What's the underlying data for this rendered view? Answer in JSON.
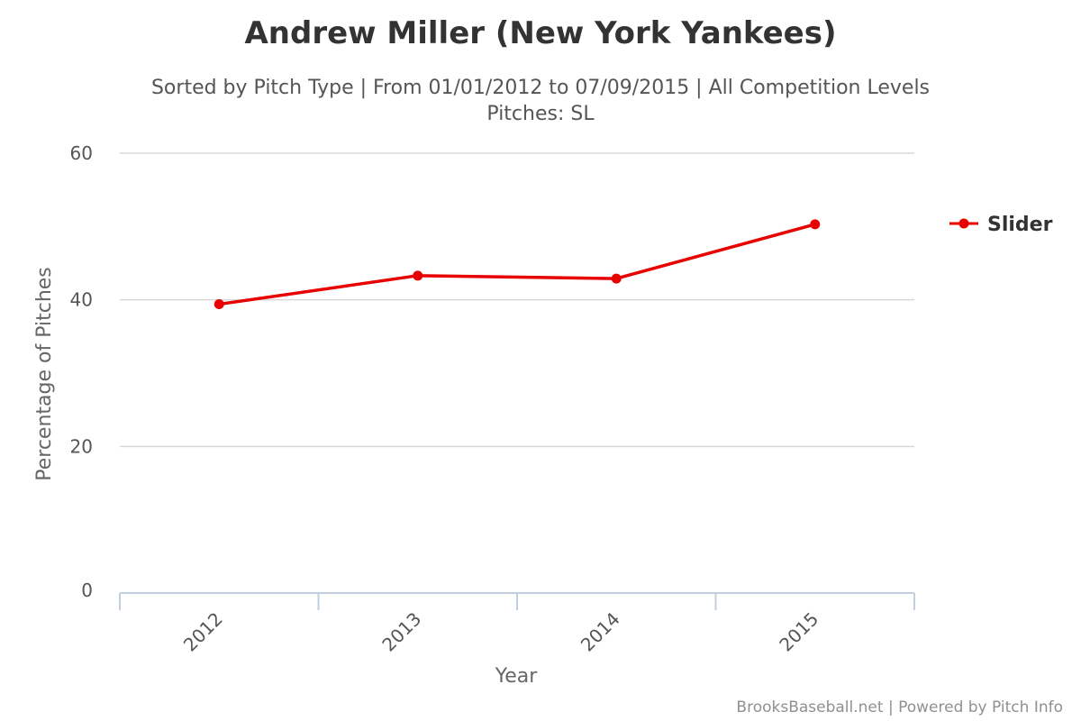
{
  "chart_data": {
    "type": "line",
    "title": "Andrew Miller (New York Yankees)",
    "subtitle_lines": [
      "Sorted by Pitch Type | From 01/01/2012 to 07/09/2015 | All Competition Levels",
      "Pitches: SL"
    ],
    "xlabel": "Year",
    "ylabel": "Percentage of Pitches",
    "categories": [
      "2012",
      "2013",
      "2014",
      "2015"
    ],
    "y_ticks": [
      0,
      20,
      40,
      60
    ],
    "ylim": [
      0,
      60
    ],
    "grid": true,
    "legend_position": "right",
    "series": [
      {
        "name": "Slider",
        "color": "#e80000",
        "values": [
          39.4,
          43.3,
          42.9,
          50.3
        ]
      }
    ]
  },
  "credits": "BrooksBaseball.net | Powered by Pitch Info",
  "colors": {
    "grid": "#d8d8d8",
    "axis": "#c0d0e0"
  }
}
